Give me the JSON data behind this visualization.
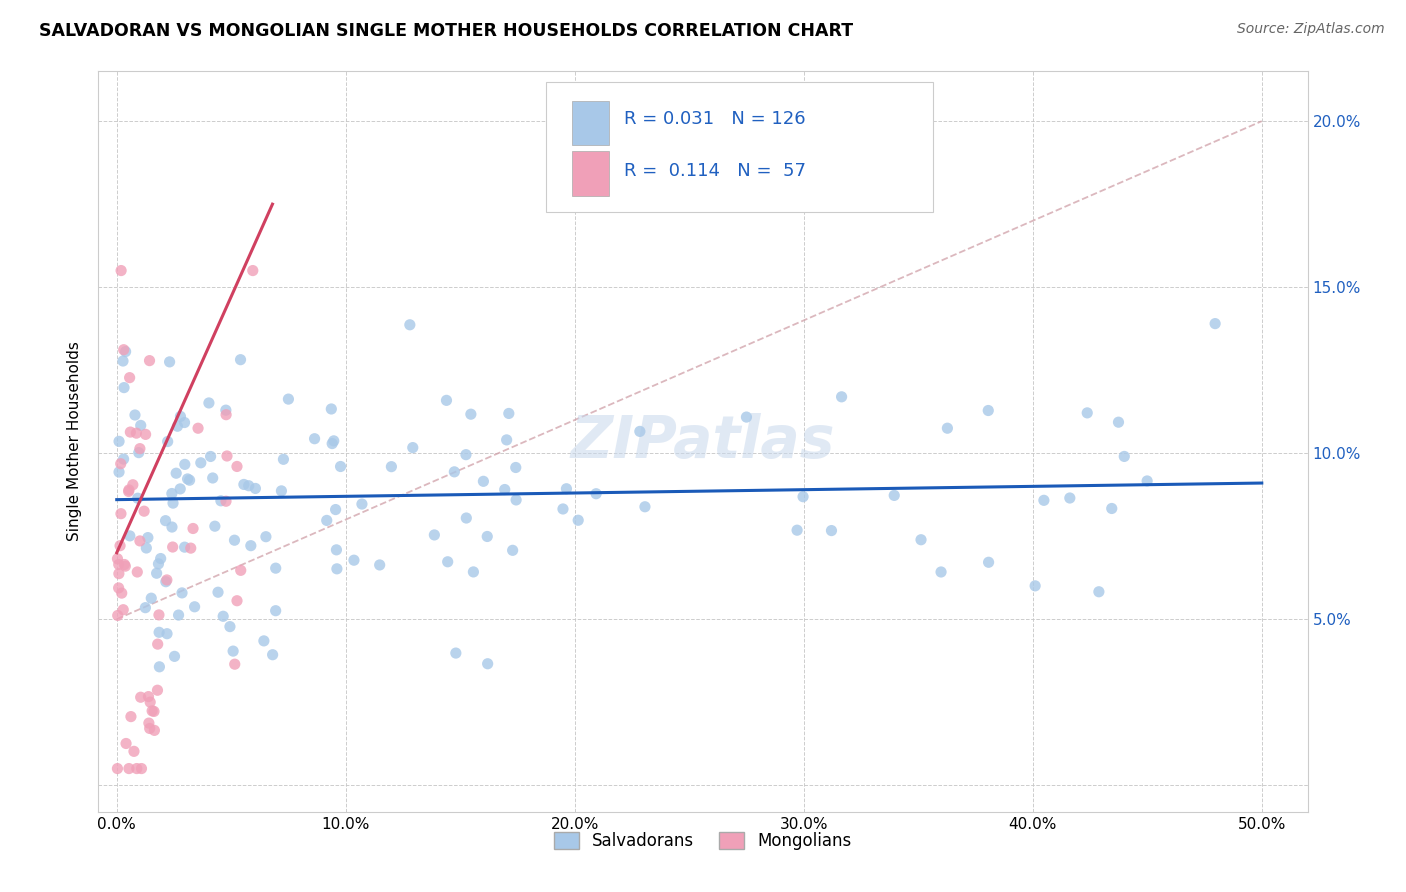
{
  "title": "SALVADORAN VS MONGOLIAN SINGLE MOTHER HOUSEHOLDS CORRELATION CHART",
  "source": "Source: ZipAtlas.com",
  "ylabel": "Single Mother Households",
  "salvadoran_color": "#a8c8e8",
  "mongolian_color": "#f0a0b8",
  "trend_salv_color": "#1a5ab8",
  "trend_mong_color": "#d04060",
  "dash_line_color": "#d0a0a8",
  "legend_R_salv": "0.031",
  "legend_N_salv": "126",
  "legend_R_mong": "0.114",
  "legend_N_mong": " 57",
  "watermark": "ZIPatlas",
  "xlim": [
    -0.008,
    0.52
  ],
  "ylim": [
    -0.008,
    0.215
  ],
  "x_ticks": [
    0.0,
    0.1,
    0.2,
    0.3,
    0.4,
    0.5
  ],
  "y_ticks": [
    0.0,
    0.05,
    0.1,
    0.15,
    0.2
  ],
  "blue_text_color": "#2060c0",
  "title_fontsize": 12.5,
  "source_fontsize": 10,
  "tick_fontsize": 11,
  "legend_fontsize": 13
}
